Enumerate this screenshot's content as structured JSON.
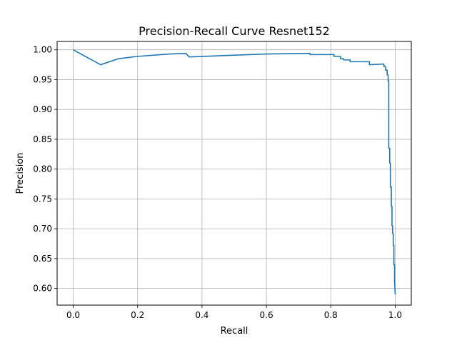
{
  "chart_data": {
    "type": "line",
    "title": "Precision-Recall Curve Resnet152",
    "xlabel": "Recall",
    "ylabel": "Precision",
    "xlim": [
      -0.05,
      1.05
    ],
    "ylim": [
      0.572,
      1.014
    ],
    "xticks": [
      0.0,
      0.2,
      0.4,
      0.6,
      0.8,
      1.0
    ],
    "xtick_labels": [
      "0.0",
      "0.2",
      "0.4",
      "0.6",
      "0.8",
      "1.0"
    ],
    "yticks": [
      0.6,
      0.65,
      0.7,
      0.75,
      0.8,
      0.85,
      0.9,
      0.95,
      1.0
    ],
    "ytick_labels": [
      "0.60",
      "0.65",
      "0.70",
      "0.75",
      "0.80",
      "0.85",
      "0.90",
      "0.95",
      "1.00"
    ],
    "grid": true,
    "series": [
      {
        "color": "#1f77b4",
        "x": [
          0.0,
          0.085,
          0.14,
          0.2,
          0.3,
          0.35,
          0.36,
          0.5,
          0.6,
          0.735,
          0.736,
          0.8,
          0.81,
          0.81,
          0.83,
          0.83,
          0.84,
          0.84,
          0.86,
          0.86,
          0.9,
          0.92,
          0.92,
          0.96,
          0.965,
          0.965,
          0.97,
          0.97,
          0.975,
          0.975,
          0.978,
          0.978,
          0.98,
          0.98,
          0.983,
          0.983,
          0.985,
          0.985,
          0.988,
          0.988,
          0.99,
          0.99,
          0.992,
          0.992,
          0.994,
          0.994,
          0.996,
          0.996,
          0.998,
          0.998,
          1.0
        ],
        "y": [
          1.0,
          0.975,
          0.985,
          0.989,
          0.993,
          0.994,
          0.988,
          0.991,
          0.993,
          0.994,
          0.992,
          0.992,
          0.992,
          0.989,
          0.989,
          0.985,
          0.985,
          0.983,
          0.983,
          0.98,
          0.98,
          0.98,
          0.975,
          0.976,
          0.976,
          0.972,
          0.972,
          0.966,
          0.966,
          0.958,
          0.958,
          0.948,
          0.948,
          0.835,
          0.835,
          0.81,
          0.81,
          0.77,
          0.77,
          0.738,
          0.738,
          0.705,
          0.705,
          0.692,
          0.692,
          0.672,
          0.672,
          0.64,
          0.64,
          0.612,
          0.59
        ]
      }
    ]
  }
}
